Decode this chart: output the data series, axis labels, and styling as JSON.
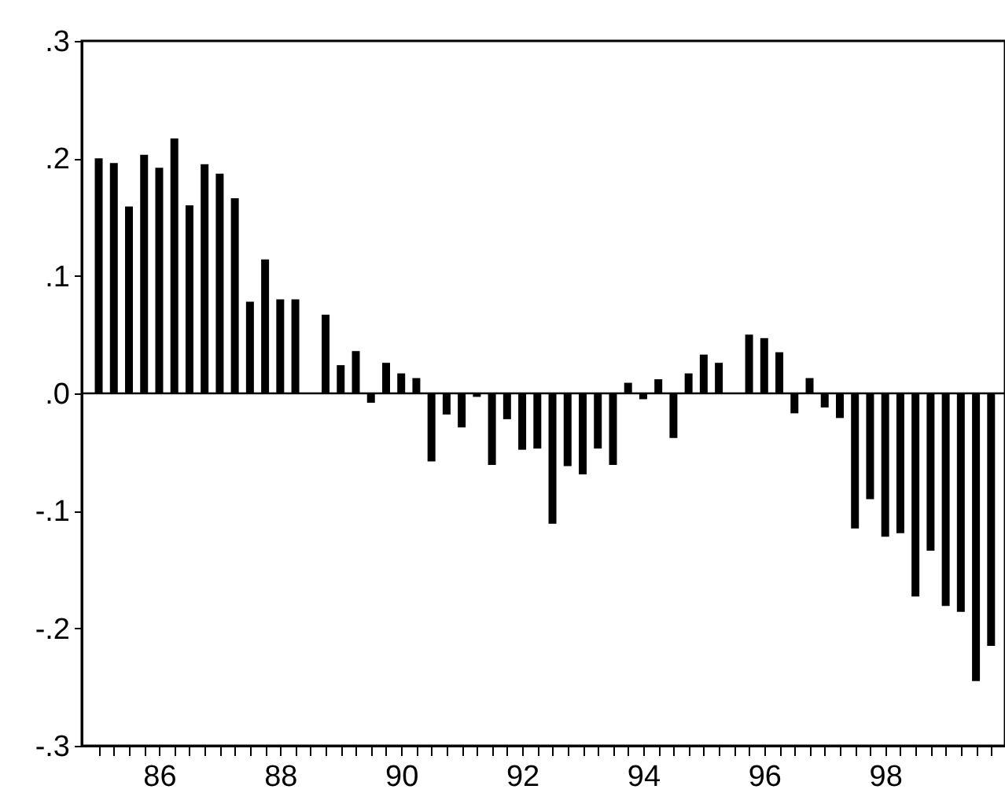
{
  "chart_data": {
    "type": "bar",
    "x": [
      85.0,
      85.25,
      85.5,
      85.75,
      86.0,
      86.25,
      86.5,
      86.75,
      87.0,
      87.25,
      87.5,
      87.75,
      88.0,
      88.25,
      88.5,
      88.75,
      89.0,
      89.25,
      89.5,
      89.75,
      90.0,
      90.25,
      90.5,
      90.75,
      91.0,
      91.25,
      91.5,
      91.75,
      92.0,
      92.25,
      92.5,
      92.75,
      93.0,
      93.25,
      93.5,
      93.75,
      94.0,
      94.25,
      94.5,
      94.75,
      95.0,
      95.25,
      95.5,
      95.75,
      96.0,
      96.25,
      96.5,
      96.75,
      97.0,
      97.25,
      97.5,
      97.75,
      98.0,
      98.25,
      98.5,
      98.75,
      99.0,
      99.25,
      99.5,
      99.75
    ],
    "values": [
      0.2,
      0.196,
      0.159,
      0.203,
      0.192,
      0.217,
      0.16,
      0.195,
      0.187,
      0.166,
      0.078,
      0.114,
      0.08,
      0.08,
      null,
      0.067,
      0.024,
      0.036,
      -0.008,
      0.026,
      0.017,
      0.013,
      -0.058,
      -0.018,
      -0.029,
      -0.003,
      -0.061,
      -0.022,
      -0.048,
      -0.047,
      -0.111,
      -0.062,
      -0.069,
      -0.047,
      -0.061,
      0.009,
      -0.005,
      0.012,
      -0.038,
      0.017,
      0.033,
      0.026,
      null,
      0.05,
      0.047,
      0.035,
      -0.017,
      0.013,
      -0.012,
      -0.021,
      -0.115,
      -0.09,
      -0.122,
      -0.119,
      -0.173,
      -0.134,
      -0.181,
      -0.186,
      -0.245,
      -0.215
    ],
    "color": "#000000",
    "xlim": [
      84.85,
      99.85
    ],
    "xticks": [
      {
        "value": 85.0,
        "label": null
      },
      {
        "value": 85.25,
        "label": null
      },
      {
        "value": 85.5,
        "label": null
      },
      {
        "value": 85.75,
        "label": null
      },
      86,
      {
        "value": 86.25,
        "label": null
      },
      {
        "value": 86.5,
        "label": null
      },
      {
        "value": 86.75,
        "label": null
      },
      {
        "value": 87.0,
        "label": null
      },
      {
        "value": 87.25,
        "label": null
      },
      {
        "value": 87.5,
        "label": null
      },
      {
        "value": 87.75,
        "label": null
      },
      88,
      {
        "value": 88.25,
        "label": null
      },
      {
        "value": 88.5,
        "label": null
      },
      {
        "value": 88.75,
        "label": null
      },
      {
        "value": 89.0,
        "label": null
      },
      {
        "value": 89.25,
        "label": null
      },
      {
        "value": 89.5,
        "label": null
      },
      {
        "value": 89.75,
        "label": null
      },
      90,
      {
        "value": 90.25,
        "label": null
      },
      {
        "value": 90.5,
        "label": null
      },
      {
        "value": 90.75,
        "label": null
      },
      {
        "value": 91.0,
        "label": null
      },
      {
        "value": 91.25,
        "label": null
      },
      {
        "value": 91.5,
        "label": null
      },
      {
        "value": 91.75,
        "label": null
      },
      92,
      {
        "value": 92.25,
        "label": null
      },
      {
        "value": 92.5,
        "label": null
      },
      {
        "value": 92.75,
        "label": null
      },
      {
        "value": 93.0,
        "label": null
      },
      {
        "value": 93.25,
        "label": null
      },
      {
        "value": 93.5,
        "label": null
      },
      {
        "value": 93.75,
        "label": null
      },
      94,
      {
        "value": 94.25,
        "label": null
      },
      {
        "value": 94.5,
        "label": null
      },
      {
        "value": 94.75,
        "label": null
      },
      {
        "value": 95.0,
        "label": null
      },
      {
        "value": 95.25,
        "label": null
      },
      {
        "value": 95.5,
        "label": null
      },
      {
        "value": 95.75,
        "label": null
      },
      96,
      {
        "value": 96.25,
        "label": null
      },
      {
        "value": 96.5,
        "label": null
      },
      {
        "value": 96.75,
        "label": null
      },
      {
        "value": 97.0,
        "label": null
      },
      {
        "value": 97.25,
        "label": null
      },
      {
        "value": 97.5,
        "label": null
      },
      {
        "value": 97.75,
        "label": null
      },
      98,
      {
        "value": 98.25,
        "label": null
      },
      {
        "value": 98.5,
        "label": null
      },
      {
        "value": 98.75,
        "label": null
      },
      {
        "value": 99.0,
        "label": null
      },
      {
        "value": 99.25,
        "label": null
      },
      {
        "value": 99.5,
        "label": null
      },
      {
        "value": 99.75,
        "label": null
      }
    ],
    "ylim": [
      -0.3,
      0.3
    ],
    "yticks": [
      {
        "value": -0.3,
        "label": "-.3"
      },
      {
        "value": -0.2,
        "label": "-.2"
      },
      {
        "value": -0.1,
        "label": "-.1"
      },
      {
        "value": 0,
        "label": ".0"
      },
      {
        "value": 0.1,
        "label": ".1"
      },
      {
        "value": 0.2,
        "label": ".2"
      },
      {
        "value": 0.3,
        "label": ".3"
      }
    ],
    "ref_lines": [
      {
        "axis": "y",
        "value": 0,
        "color": "#000000"
      }
    ],
    "grid": false
  }
}
